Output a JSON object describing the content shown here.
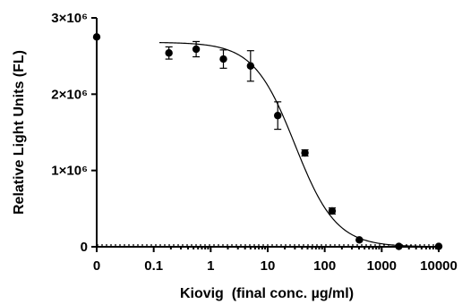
{
  "chart_data": {
    "type": "scatter",
    "xlabel": "Kiovig  (final conc. µg/ml)",
    "ylabel": "Relative Light Units (FL)",
    "x_scale": "log",
    "x_ticks": [
      {
        "value": 0,
        "label": "0"
      },
      {
        "value": 0.1,
        "label": "0.1"
      },
      {
        "value": 1,
        "label": "1"
      },
      {
        "value": 10,
        "label": "10"
      },
      {
        "value": 100,
        "label": "100"
      },
      {
        "value": 1000,
        "label": "1000"
      },
      {
        "value": 10000,
        "label": "10000"
      }
    ],
    "y_ticks": [
      {
        "value": 0,
        "label": "0"
      },
      {
        "value": 1000000,
        "label": "1×10⁶"
      },
      {
        "value": 2000000,
        "label": "2×10⁶"
      },
      {
        "value": 3000000,
        "label": "3×10⁶"
      }
    ],
    "ylim": [
      0,
      3000000
    ],
    "points": [
      {
        "x": 0,
        "y": 2750000,
        "err": 0
      },
      {
        "x": 0.185,
        "y": 2540000,
        "err": 80000
      },
      {
        "x": 0.556,
        "y": 2590000,
        "err": 100000
      },
      {
        "x": 1.67,
        "y": 2460000,
        "err": 120000
      },
      {
        "x": 5,
        "y": 2370000,
        "err": 200000
      },
      {
        "x": 15,
        "y": 1720000,
        "err": 180000
      },
      {
        "x": 45,
        "y": 1230000,
        "err": 40000
      },
      {
        "x": 135,
        "y": 470000,
        "err": 40000
      },
      {
        "x": 405,
        "y": 90000,
        "err": 10000
      },
      {
        "x": 2000,
        "y": 5000,
        "err": 0
      },
      {
        "x": 10000,
        "y": 5000,
        "err": 0
      }
    ],
    "fit": {
      "top": 2680000,
      "bottom": 0,
      "ec50": 30,
      "hill": 1.2
    },
    "grid": false,
    "legend": "none",
    "marker_color": "#000000"
  }
}
